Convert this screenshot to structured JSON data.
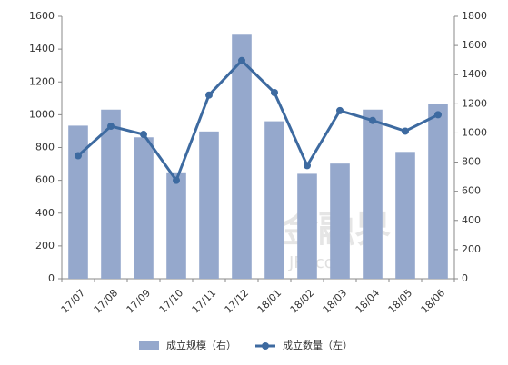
{
  "chart_data": {
    "type": "bar_line",
    "categories": [
      "17/07",
      "17/08",
      "17/09",
      "17/10",
      "17/11",
      "17/12",
      "18/01",
      "18/02",
      "18/03",
      "18/04",
      "18/05",
      "18/06"
    ],
    "series": [
      {
        "name": "成立规模（右）",
        "type": "bar",
        "axis": "y2",
        "color": "#95a8cc",
        "values": [
          1050,
          1160,
          970,
          730,
          1010,
          1680,
          1080,
          720,
          790,
          1160,
          870,
          1200
        ]
      },
      {
        "name": "成立数量（左）",
        "type": "line",
        "axis": "y",
        "color": "#3d6aa0",
        "values": [
          750,
          930,
          880,
          600,
          1120,
          1330,
          1135,
          690,
          1025,
          965,
          900,
          1000
        ]
      }
    ],
    "ylim": [
      0,
      1600
    ],
    "yticks": [
      0,
      200,
      400,
      600,
      800,
      1000,
      1200,
      1400,
      1600
    ],
    "y2lim": [
      0,
      1800
    ],
    "y2ticks": [
      0,
      200,
      400,
      600,
      800,
      1000,
      1200,
      1400,
      1600,
      1800
    ],
    "legend": "bottom",
    "annotations": [
      "金融界",
      "JRJ.com"
    ]
  }
}
